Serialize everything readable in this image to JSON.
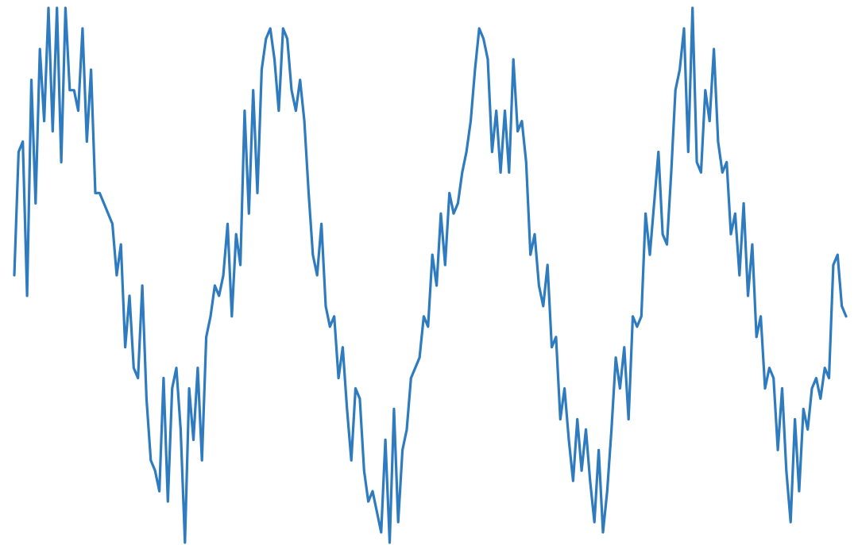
{
  "chart_data": {
    "type": "line",
    "color": "#2f7bbf",
    "grid": false,
    "values": [
      0.0,
      0.6,
      0.65,
      -0.1,
      0.95,
      0.35,
      1.1,
      0.75,
      1.3,
      0.7,
      1.3,
      0.55,
      1.3,
      0.9,
      0.9,
      0.8,
      1.2,
      0.65,
      1.0,
      0.4,
      0.4,
      0.35,
      0.3,
      0.25,
      0.0,
      0.15,
      -0.35,
      -0.1,
      -0.45,
      -0.5,
      -0.05,
      -0.6,
      -0.9,
      -0.95,
      -1.05,
      -0.5,
      -1.1,
      -0.55,
      -0.45,
      -0.75,
      -1.3,
      -0.55,
      -0.8,
      -0.45,
      -0.9,
      -0.3,
      -0.2,
      -0.05,
      -0.1,
      0.0,
      0.25,
      -0.2,
      0.2,
      0.05,
      0.8,
      0.3,
      0.9,
      0.4,
      1.0,
      1.15,
      1.2,
      1.05,
      0.8,
      1.2,
      1.15,
      0.9,
      0.8,
      0.95,
      0.75,
      0.4,
      0.1,
      0.0,
      0.25,
      -0.15,
      -0.25,
      -0.2,
      -0.5,
      -0.35,
      -0.65,
      -0.9,
      -0.55,
      -0.6,
      -0.95,
      -1.1,
      -1.05,
      -1.15,
      -1.25,
      -0.8,
      -1.3,
      -0.65,
      -1.2,
      -0.85,
      -0.75,
      -0.5,
      -0.45,
      -0.4,
      -0.2,
      -0.25,
      0.1,
      -0.05,
      0.3,
      0.05,
      0.4,
      0.3,
      0.35,
      0.5,
      0.6,
      0.75,
      1.0,
      1.2,
      1.15,
      1.05,
      0.6,
      0.8,
      0.5,
      0.8,
      0.5,
      1.05,
      0.7,
      0.75,
      0.55,
      0.1,
      0.2,
      -0.05,
      -0.15,
      0.05,
      -0.35,
      -0.3,
      -0.7,
      -0.55,
      -0.8,
      -1.0,
      -0.7,
      -0.95,
      -0.75,
      -1.0,
      -1.2,
      -0.85,
      -1.25,
      -1.05,
      -0.75,
      -0.4,
      -0.55,
      -0.35,
      -0.7,
      -0.2,
      -0.25,
      -0.2,
      0.3,
      0.1,
      0.35,
      0.6,
      0.2,
      0.15,
      0.5,
      0.9,
      1.0,
      1.2,
      0.6,
      1.3,
      0.55,
      0.5,
      0.9,
      0.75,
      1.1,
      0.65,
      0.5,
      0.55,
      0.2,
      0.3,
      0.0,
      0.35,
      -0.1,
      0.15,
      -0.3,
      -0.2,
      -0.55,
      -0.45,
      -0.5,
      -0.85,
      -0.55,
      -0.95,
      -1.2,
      -0.7,
      -1.05,
      -0.65,
      -0.75,
      -0.55,
      -0.5,
      -0.6,
      -0.45,
      -0.5,
      0.05,
      0.1,
      -0.15,
      -0.2
    ]
  }
}
